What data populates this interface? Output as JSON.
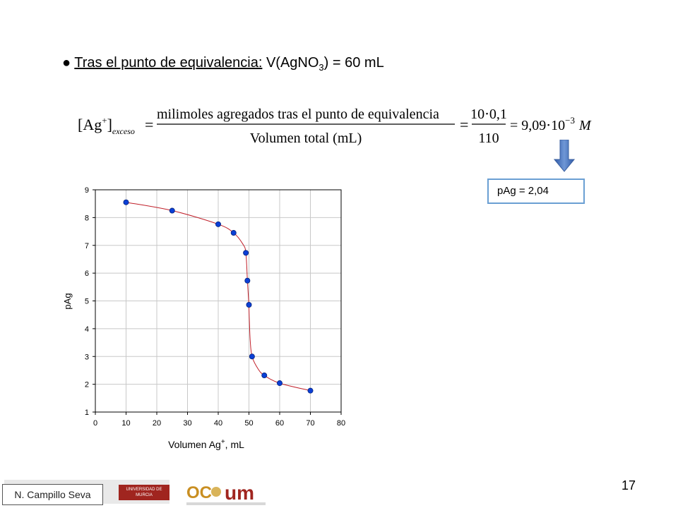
{
  "heading": {
    "bullet": "●",
    "label": "Tras el punto de equivalencia:",
    "expression_prefix": "V(AgNO",
    "expression_sub": "3",
    "expression_suffix": ") = 60 mL"
  },
  "formula": {
    "lhs": "[Ag",
    "lhs_sup": "+",
    "lhs_close": "]",
    "lhs_sub": "exceso",
    "numerator": "milimoles agregados tras el punto de equivalencia",
    "denominator": "Volumen total (mL)",
    "numerator2": "10⋅0,1",
    "denominator2": "110",
    "result": "= 9,09⋅10",
    "result_exp": "−3",
    "result_unit": "M"
  },
  "result_box": {
    "text": "pAg = 2,04"
  },
  "chart_data": {
    "type": "scatter",
    "x_label": "Volumen Ag",
    "x_label_sup": "+",
    "x_label_unit": ", mL",
    "y_label": "pAg",
    "xlim": [
      0,
      80
    ],
    "ylim": [
      1,
      9
    ],
    "x_ticks": [
      "0",
      "10",
      "20",
      "30",
      "40",
      "50",
      "60",
      "70",
      "80"
    ],
    "y_ticks": [
      "1",
      "2",
      "3",
      "4",
      "5",
      "6",
      "7",
      "8",
      "9"
    ],
    "grid": true,
    "points": [
      {
        "x": 10,
        "y": 8.55
      },
      {
        "x": 25,
        "y": 8.25
      },
      {
        "x": 40,
        "y": 7.76
      },
      {
        "x": 45,
        "y": 7.45
      },
      {
        "x": 49,
        "y": 6.73
      },
      {
        "x": 49.5,
        "y": 5.73
      },
      {
        "x": 50,
        "y": 4.86
      },
      {
        "x": 51,
        "y": 3.0
      },
      {
        "x": 55,
        "y": 2.32
      },
      {
        "x": 60,
        "y": 2.04
      },
      {
        "x": 70,
        "y": 1.77
      }
    ],
    "curve": [
      [
        10,
        8.55
      ],
      [
        25,
        8.25
      ],
      [
        40,
        7.76
      ],
      [
        45,
        7.45
      ],
      [
        48,
        7.05
      ],
      [
        49,
        6.73
      ],
      [
        49.5,
        5.73
      ],
      [
        49.9,
        5.0
      ],
      [
        50.1,
        4.4
      ],
      [
        50.4,
        3.6
      ],
      [
        51,
        3.0
      ],
      [
        53,
        2.55
      ],
      [
        55,
        2.32
      ],
      [
        60,
        2.04
      ],
      [
        70,
        1.77
      ]
    ],
    "colors": {
      "point": "#0b3fd6",
      "curve": "#c0202a",
      "grid": "#c8c8c8"
    }
  },
  "footer": {
    "author": "N. Campillo Seva",
    "logo_um_text": "UNIVERSIDAD DE MURCIA",
    "page_number": "17"
  }
}
